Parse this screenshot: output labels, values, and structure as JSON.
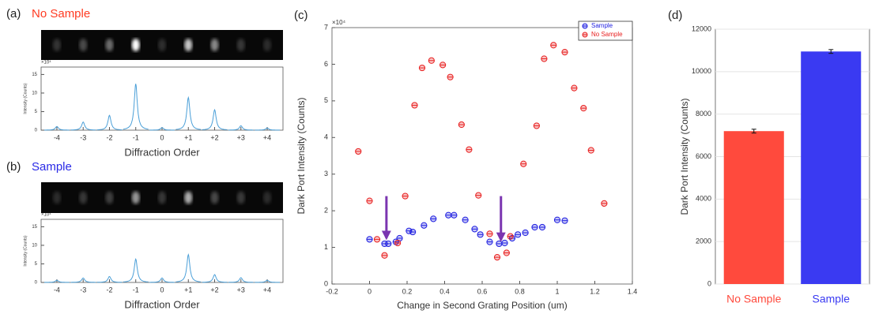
{
  "chart_data": [
    {
      "type": "spectrum",
      "panel_label": "(a)",
      "title": "No Sample",
      "title_color": "#ff3b22",
      "ylabel": "Intensity (Counts)",
      "xlabel": "Diffraction Order",
      "y_multiplier": "×10⁴",
      "color": "#4a9fd8",
      "categories": [
        -4,
        -3,
        -2,
        -1,
        0,
        1,
        2,
        3,
        4
      ],
      "values": [
        1,
        2.2,
        4,
        12.5,
        0.7,
        8.8,
        5.5,
        1.2,
        0.6
      ],
      "xlim": [
        -4.6,
        4.6
      ],
      "xticks": [
        -4,
        -3,
        -2,
        -1,
        0,
        {
          "value": 1,
          "label": "+1"
        },
        {
          "value": 2,
          "label": "+2"
        },
        {
          "value": 3,
          "label": "+3"
        },
        {
          "value": 4,
          "label": "+4"
        }
      ],
      "ylim": [
        0,
        17
      ],
      "yticks": [
        0,
        5,
        10,
        15
      ],
      "grid": false
    },
    {
      "type": "spectrum",
      "panel_label": "(b)",
      "title": "Sample",
      "title_color": "#2a2ae6",
      "ylabel": "Intensity (Counts)",
      "xlabel": "Diffraction Order",
      "y_multiplier": "×10⁴",
      "color": "#4a9fd8",
      "categories": [
        -4,
        -3,
        -2,
        -1,
        0,
        1,
        2,
        3,
        4
      ],
      "values": [
        0.6,
        1.2,
        1.6,
        6.3,
        1.2,
        7.5,
        2.1,
        1.3,
        0.6
      ],
      "xlim": [
        -4.6,
        4.6
      ],
      "xticks": [
        -4,
        -3,
        -2,
        -1,
        0,
        {
          "value": 1,
          "label": "+1"
        },
        {
          "value": 2,
          "label": "+2"
        },
        {
          "value": 3,
          "label": "+3"
        },
        {
          "value": 4,
          "label": "+4"
        }
      ],
      "ylim": [
        0,
        17
      ],
      "yticks": [
        0,
        5,
        10,
        15
      ],
      "grid": false
    },
    {
      "type": "scatter",
      "panel_label": "(c)",
      "xlabel": "Change in Second Grating Position (um)",
      "ylabel": "Dark Port Intensity (Counts)",
      "y_multiplier": "×10⁴",
      "series": [
        {
          "name": "Sample",
          "color": "#1f1fe0",
          "x": [
            0,
            0.08,
            0.1,
            0.14,
            0.16,
            0.21,
            0.23,
            0.29,
            0.34,
            0.42,
            0.45,
            0.51,
            0.56,
            0.59,
            0.64,
            0.69,
            0.72,
            0.76,
            0.79,
            0.83,
            0.88,
            0.92,
            1.0,
            1.04
          ],
          "values": [
            1.22,
            1.1,
            1.1,
            1.15,
            1.25,
            1.45,
            1.42,
            1.6,
            1.78,
            1.88,
            1.88,
            1.75,
            1.5,
            1.35,
            1.15,
            1.1,
            1.12,
            1.25,
            1.35,
            1.4,
            1.55,
            1.55,
            1.75,
            1.73
          ]
        },
        {
          "name": "No Sample",
          "color": "#e82020",
          "x": [
            -0.06,
            0,
            0.04,
            0.08,
            0.15,
            0.19,
            0.24,
            0.28,
            0.33,
            0.39,
            0.43,
            0.49,
            0.53,
            0.58,
            0.64,
            0.68,
            0.73,
            0.75,
            0.82,
            0.89,
            0.93,
            0.98,
            1.04,
            1.09,
            1.14,
            1.18,
            1.25
          ],
          "values": [
            3.62,
            2.27,
            1.22,
            0.78,
            1.12,
            2.4,
            4.88,
            5.9,
            6.1,
            5.98,
            5.65,
            4.35,
            3.67,
            2.42,
            1.37,
            0.73,
            0.85,
            1.3,
            3.28,
            4.32,
            6.15,
            6.52,
            6.33,
            5.35,
            4.8,
            3.65,
            2.2
          ]
        }
      ],
      "arrows": [
        {
          "x": 0.09,
          "from": 2.4,
          "to": 1.25
        },
        {
          "x": 0.7,
          "from": 2.4,
          "to": 1.2
        }
      ],
      "arrow_color": "#7b35b0",
      "xlim": [
        -0.2,
        1.4
      ],
      "xticks": [
        -0.2,
        0,
        0.2,
        0.4,
        0.6,
        0.8,
        1,
        1.2,
        1.4
      ],
      "ylim": [
        0,
        7
      ],
      "yticks": [
        0,
        1,
        2,
        3,
        4,
        5,
        6,
        7
      ],
      "grid": false,
      "legend": "upper right"
    },
    {
      "type": "bar",
      "panel_label": "(d)",
      "ylabel": "Dark Port Intensity (Counts)",
      "categories": [
        "No Sample",
        "Sample"
      ],
      "values": [
        7200,
        10950
      ],
      "errors": [
        90,
        90
      ],
      "colors": [
        "#ff4a3d",
        "#3a3af2"
      ],
      "ylim": [
        0,
        12000
      ],
      "yticks": [
        0,
        2000,
        4000,
        6000,
        8000,
        10000,
        12000
      ],
      "grid": true
    }
  ]
}
